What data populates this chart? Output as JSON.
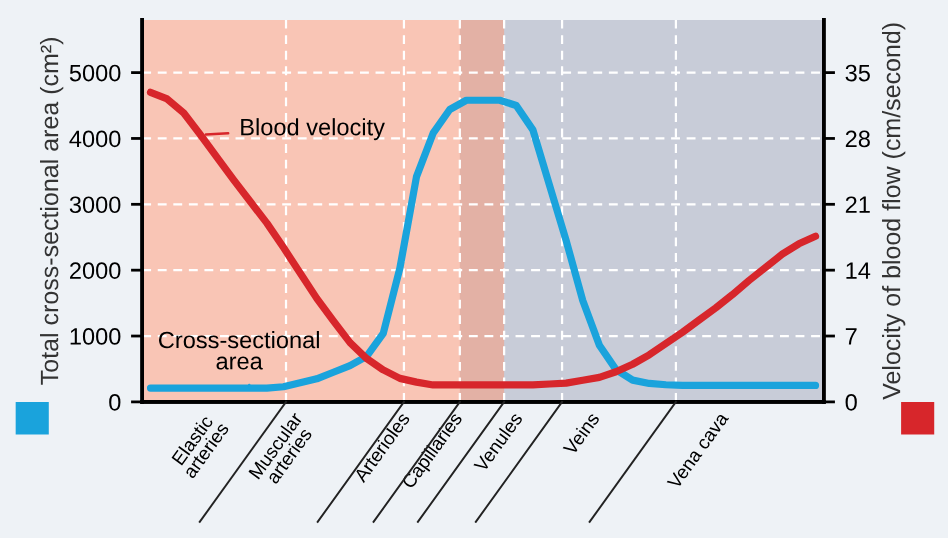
{
  "chart_data": {
    "type": "line",
    "ylabel": "Total cross-sectional area (cm²)",
    "y2label": "Velocity of blood flow (cm/second)",
    "categories": [
      null,
      null,
      null,
      "Elastic\narteries",
      null,
      null,
      null,
      null,
      "Muscular\narteries",
      null,
      null,
      null,
      null,
      null,
      "Arterioles",
      null,
      null,
      "Capillaries",
      null,
      null,
      null,
      "Venules",
      null,
      null,
      null,
      null,
      "Veins",
      null,
      null,
      null,
      null,
      null,
      null,
      "Vena cava",
      null,
      null,
      null,
      null,
      null,
      null,
      null
    ],
    "ylim": [
      0,
      5800
    ],
    "yticks": [
      0,
      1000,
      2000,
      3000,
      4000,
      5000
    ],
    "y2lim": [
      0,
      40.6
    ],
    "y2ticks": [
      0,
      7,
      14,
      21,
      28,
      35
    ],
    "grid": "y",
    "series": [
      {
        "name": "Blood velocity",
        "color": "#d7262b",
        "axis": "y2",
        "values": [
          32.9,
          32.2,
          30.7,
          28.4,
          26,
          23.6,
          21.3,
          19,
          16.4,
          13.7,
          11,
          8.6,
          6.3,
          4.6,
          3.4,
          2.5,
          2.1,
          1.8,
          1.8,
          1.8,
          1.8,
          1.8,
          1.8,
          1.8,
          1.9,
          2,
          2.3,
          2.6,
          3.2,
          4,
          5,
          6.2,
          7.4,
          8.7,
          10,
          11.4,
          12.9,
          14.3,
          15.7,
          16.8,
          17.6
        ]
      },
      {
        "name": "Cross-sectional area",
        "color": "#1aa3dc",
        "values": [
          210,
          210,
          210,
          210,
          210,
          210,
          210,
          210,
          230,
          290,
          350,
          450,
          550,
          690,
          1040,
          2030,
          3420,
          4080,
          4440,
          4580,
          4580,
          4580,
          4500,
          4130,
          3290,
          2450,
          1540,
          860,
          490,
          330,
          280,
          260,
          250,
          250,
          250,
          250,
          250,
          250,
          250,
          250,
          250
        ]
      }
    ]
  }
}
